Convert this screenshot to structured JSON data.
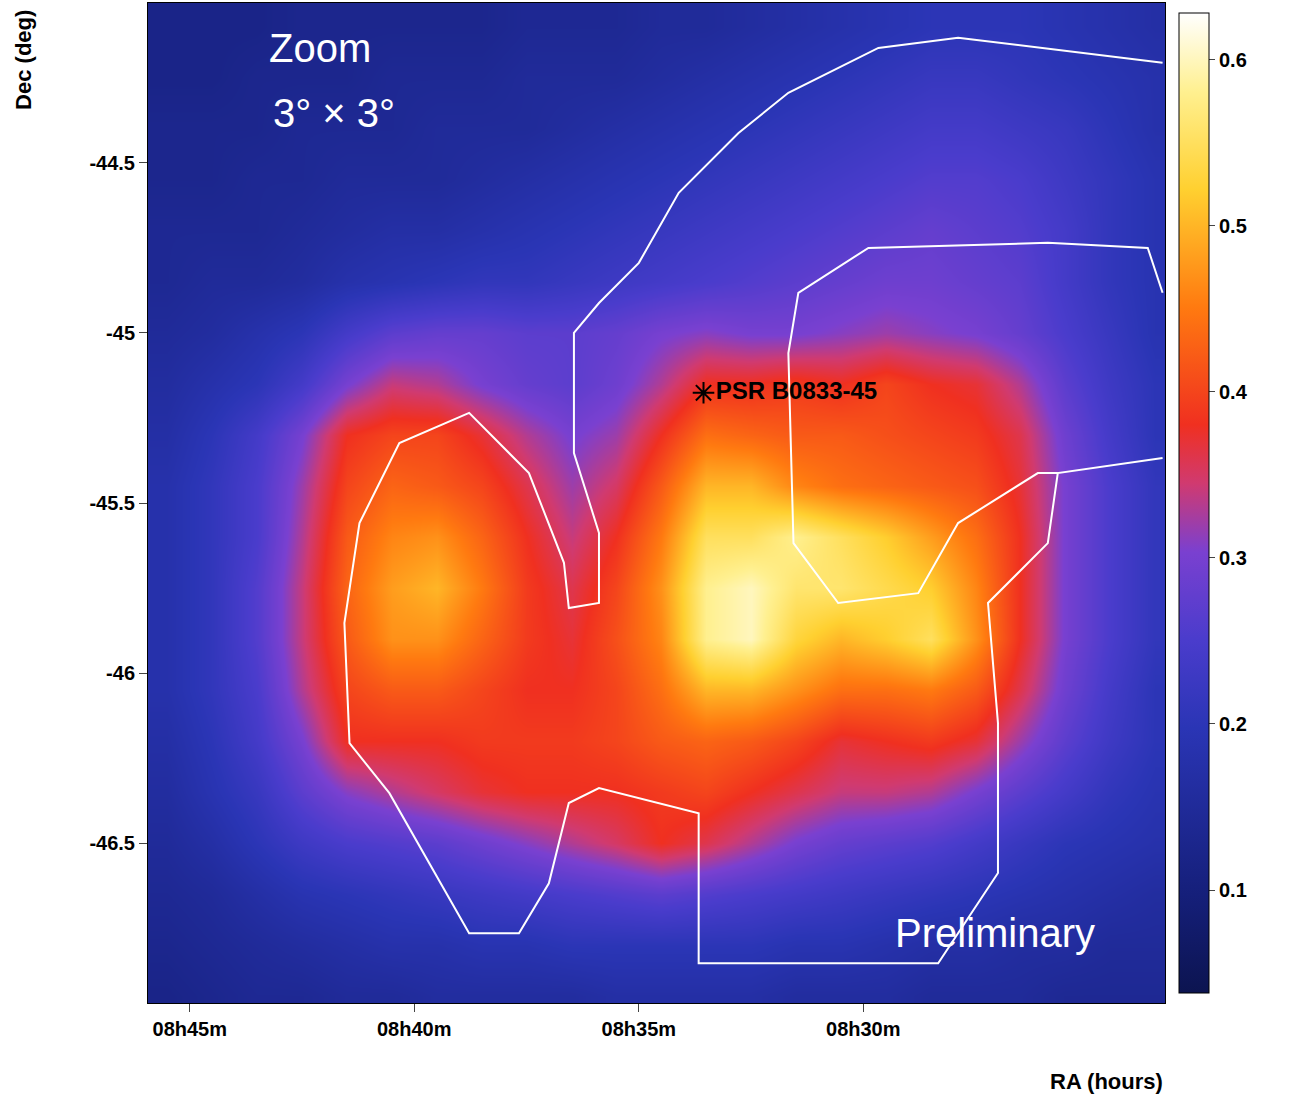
{
  "chart_data": {
    "type": "heatmap",
    "x_label": "RA (hours)",
    "y_label": "Dec (deg)",
    "x": [
      8.7583,
      8.7417,
      8.725,
      8.7083,
      8.6917,
      8.675,
      8.6583,
      8.6417,
      8.625,
      8.6083,
      8.5917,
      8.575,
      8.5583,
      8.5417,
      8.525,
      8.5083,
      8.4917,
      8.475,
      8.4583,
      8.4417,
      8.425,
      8.4083,
      8.3917
    ],
    "y": [
      -44.1,
      -44.25,
      -44.4,
      -44.55,
      -44.7,
      -44.85,
      -45.0,
      -45.15,
      -45.3,
      -45.45,
      -45.6,
      -45.75,
      -45.9,
      -46.05,
      -46.2,
      -46.35,
      -46.5,
      -46.65,
      -46.8,
      -46.95
    ],
    "z": [
      [
        0.12,
        0.12,
        0.12,
        0.13,
        0.13,
        0.13,
        0.13,
        0.13,
        0.14,
        0.14,
        0.14,
        0.15,
        0.15,
        0.16,
        0.17,
        0.18,
        0.19,
        0.2,
        0.2,
        0.2,
        0.19,
        0.18,
        0.17
      ],
      [
        0.12,
        0.12,
        0.13,
        0.13,
        0.13,
        0.14,
        0.14,
        0.14,
        0.15,
        0.15,
        0.15,
        0.16,
        0.17,
        0.18,
        0.19,
        0.2,
        0.21,
        0.22,
        0.22,
        0.21,
        0.2,
        0.19,
        0.18
      ],
      [
        0.13,
        0.13,
        0.13,
        0.14,
        0.14,
        0.14,
        0.15,
        0.15,
        0.15,
        0.16,
        0.17,
        0.18,
        0.19,
        0.2,
        0.21,
        0.22,
        0.23,
        0.24,
        0.24,
        0.23,
        0.22,
        0.2,
        0.18
      ],
      [
        0.13,
        0.13,
        0.14,
        0.14,
        0.15,
        0.15,
        0.15,
        0.16,
        0.17,
        0.18,
        0.19,
        0.2,
        0.21,
        0.22,
        0.23,
        0.24,
        0.25,
        0.26,
        0.26,
        0.25,
        0.23,
        0.21,
        0.19
      ],
      [
        0.14,
        0.14,
        0.14,
        0.15,
        0.16,
        0.17,
        0.17,
        0.18,
        0.19,
        0.2,
        0.21,
        0.22,
        0.23,
        0.24,
        0.25,
        0.26,
        0.27,
        0.28,
        0.27,
        0.26,
        0.24,
        0.21,
        0.19
      ],
      [
        0.14,
        0.15,
        0.15,
        0.16,
        0.18,
        0.19,
        0.2,
        0.21,
        0.21,
        0.22,
        0.23,
        0.24,
        0.25,
        0.26,
        0.27,
        0.28,
        0.29,
        0.29,
        0.28,
        0.27,
        0.24,
        0.21,
        0.19
      ],
      [
        0.15,
        0.16,
        0.18,
        0.2,
        0.24,
        0.27,
        0.28,
        0.28,
        0.27,
        0.27,
        0.28,
        0.3,
        0.31,
        0.3,
        0.3,
        0.31,
        0.32,
        0.31,
        0.3,
        0.28,
        0.25,
        0.22,
        0.19
      ],
      [
        0.16,
        0.18,
        0.2,
        0.24,
        0.3,
        0.34,
        0.33,
        0.3,
        0.28,
        0.27,
        0.29,
        0.33,
        0.38,
        0.38,
        0.39,
        0.38,
        0.4,
        0.38,
        0.37,
        0.33,
        0.27,
        0.23,
        0.2
      ],
      [
        0.17,
        0.2,
        0.24,
        0.3,
        0.38,
        0.4,
        0.4,
        0.37,
        0.33,
        0.3,
        0.32,
        0.38,
        0.44,
        0.43,
        0.42,
        0.42,
        0.41,
        0.4,
        0.39,
        0.36,
        0.29,
        0.24,
        0.2
      ],
      [
        0.18,
        0.21,
        0.25,
        0.32,
        0.4,
        0.43,
        0.42,
        0.4,
        0.36,
        0.32,
        0.35,
        0.42,
        0.5,
        0.5,
        0.46,
        0.44,
        0.43,
        0.42,
        0.41,
        0.37,
        0.3,
        0.25,
        0.21
      ],
      [
        0.18,
        0.21,
        0.25,
        0.33,
        0.42,
        0.46,
        0.47,
        0.43,
        0.38,
        0.34,
        0.38,
        0.45,
        0.55,
        0.55,
        0.58,
        0.55,
        0.52,
        0.48,
        0.44,
        0.38,
        0.3,
        0.25,
        0.21
      ],
      [
        0.18,
        0.21,
        0.26,
        0.34,
        0.43,
        0.48,
        0.5,
        0.45,
        0.39,
        0.36,
        0.4,
        0.47,
        0.58,
        0.6,
        0.56,
        0.56,
        0.54,
        0.52,
        0.46,
        0.38,
        0.3,
        0.25,
        0.21
      ],
      [
        0.18,
        0.21,
        0.26,
        0.34,
        0.42,
        0.47,
        0.47,
        0.43,
        0.39,
        0.37,
        0.41,
        0.46,
        0.58,
        0.6,
        0.53,
        0.5,
        0.52,
        0.55,
        0.47,
        0.38,
        0.3,
        0.25,
        0.21
      ],
      [
        0.18,
        0.21,
        0.25,
        0.33,
        0.4,
        0.42,
        0.42,
        0.4,
        0.38,
        0.38,
        0.4,
        0.44,
        0.5,
        0.5,
        0.47,
        0.44,
        0.44,
        0.45,
        0.42,
        0.36,
        0.29,
        0.24,
        0.2
      ],
      [
        0.17,
        0.2,
        0.24,
        0.3,
        0.38,
        0.38,
        0.38,
        0.39,
        0.39,
        0.39,
        0.4,
        0.42,
        0.43,
        0.42,
        0.4,
        0.37,
        0.38,
        0.39,
        0.37,
        0.32,
        0.27,
        0.23,
        0.2
      ],
      [
        0.16,
        0.19,
        0.22,
        0.27,
        0.31,
        0.33,
        0.35,
        0.37,
        0.38,
        0.38,
        0.38,
        0.39,
        0.4,
        0.38,
        0.36,
        0.34,
        0.34,
        0.33,
        0.3,
        0.27,
        0.24,
        0.21,
        0.19
      ],
      [
        0.15,
        0.17,
        0.2,
        0.23,
        0.25,
        0.26,
        0.27,
        0.29,
        0.31,
        0.33,
        0.35,
        0.38,
        0.36,
        0.33,
        0.3,
        0.28,
        0.27,
        0.26,
        0.24,
        0.22,
        0.2,
        0.19,
        0.18
      ],
      [
        0.14,
        0.15,
        0.17,
        0.19,
        0.2,
        0.21,
        0.22,
        0.23,
        0.24,
        0.25,
        0.26,
        0.27,
        0.26,
        0.25,
        0.24,
        0.23,
        0.22,
        0.21,
        0.2,
        0.19,
        0.18,
        0.17,
        0.16
      ],
      [
        0.13,
        0.14,
        0.15,
        0.16,
        0.17,
        0.18,
        0.18,
        0.19,
        0.19,
        0.2,
        0.2,
        0.2,
        0.2,
        0.2,
        0.19,
        0.19,
        0.18,
        0.17,
        0.17,
        0.16,
        0.16,
        0.15,
        0.15
      ],
      [
        0.12,
        0.13,
        0.14,
        0.14,
        0.15,
        0.15,
        0.16,
        0.16,
        0.16,
        0.16,
        0.17,
        0.17,
        0.17,
        0.17,
        0.16,
        0.16,
        0.16,
        0.15,
        0.15,
        0.15,
        0.14,
        0.14,
        0.14
      ]
    ],
    "xlim": [
      8.7655,
      8.388
    ],
    "xticks": [
      {
        "value": 8.75,
        "label": "08h45m"
      },
      {
        "value": 8.6667,
        "label": "08h40m"
      },
      {
        "value": 8.5833,
        "label": "08h35m"
      },
      {
        "value": 8.5,
        "label": "08h30m"
      }
    ],
    "ylim": [
      -46.97,
      -44.03
    ],
    "yticks": [
      -44.5,
      -45,
      -45.5,
      -46,
      -46.5
    ],
    "zlim": [
      0.038,
      0.628
    ],
    "zticks": [
      0.1,
      0.2,
      0.3,
      0.4,
      0.5,
      0.6
    ],
    "contours": [
      {
        "color": "#ffffff",
        "x": [
          8.3889,
          8.4648,
          8.4944,
          8.5278,
          8.5463,
          8.5685,
          8.5833,
          8.5981,
          8.6074,
          8.6074,
          8.5981,
          8.5981,
          8.6093,
          8.6111,
          8.6241,
          8.6463,
          8.6722,
          8.687,
          8.6926,
          8.6907,
          8.6759,
          8.6611,
          8.6463,
          8.6278,
          8.6167,
          8.6093,
          8.5981,
          8.5611,
          8.5611,
          8.4722,
          8.45,
          8.45,
          8.4537,
          8.4315,
          8.4278,
          8.3889
        ],
        "y": [
          -44.206,
          -44.132,
          -44.162,
          -44.294,
          -44.412,
          -44.588,
          -44.794,
          -44.912,
          -45.0,
          -45.353,
          -45.588,
          -45.794,
          -45.809,
          -45.676,
          -45.412,
          -45.235,
          -45.324,
          -45.559,
          -45.853,
          -46.206,
          -46.353,
          -46.559,
          -46.765,
          -46.765,
          -46.618,
          -46.382,
          -46.338,
          -46.412,
          -46.853,
          -46.853,
          -46.588,
          -46.147,
          -45.794,
          -45.618,
          -45.412,
          -45.368
        ]
      },
      {
        "color": "#ffffff",
        "x": [
          8.3889,
          8.3944,
          8.4315,
          8.4981,
          8.5241,
          8.5278,
          8.5259,
          8.5093,
          8.4796,
          8.4648,
          8.4352,
          8.4278
        ],
        "y": [
          -44.882,
          -44.75,
          -44.735,
          -44.75,
          -44.882,
          -45.059,
          -45.618,
          -45.794,
          -45.765,
          -45.559,
          -45.412,
          -45.412
        ]
      }
    ],
    "source": {
      "name": "PSR B0833-45",
      "x": 8.5593,
      "y": -45.176,
      "marker": "asterisk",
      "color": "#000000"
    },
    "annotations": [
      "Zoom",
      "3° × 3°",
      "Preliminary"
    ]
  }
}
